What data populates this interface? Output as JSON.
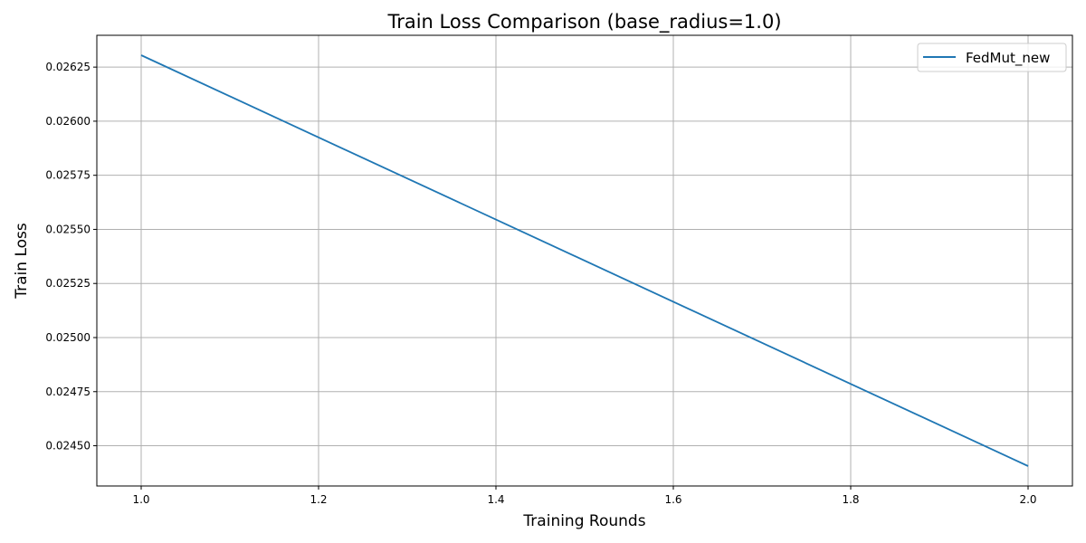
{
  "chart_data": {
    "type": "line",
    "title": "Train Loss Comparison (base_radius=1.0)",
    "xlabel": "Training Rounds",
    "ylabel": "Train Loss",
    "xlim": [
      0.95,
      2.05
    ],
    "ylim": [
      0.024314,
      0.026397
    ],
    "xticks": [
      1.0,
      1.2,
      1.4,
      1.6,
      1.8,
      2.0
    ],
    "xtick_labels": [
      "1.0",
      "1.2",
      "1.4",
      "1.6",
      "1.8",
      "2.0"
    ],
    "yticks": [
      0.0245,
      0.02475,
      0.025,
      0.02525,
      0.0255,
      0.02575,
      0.026,
      0.02625
    ],
    "ytick_labels": [
      "0.02450",
      "0.02475",
      "0.02500",
      "0.02525",
      "0.02550",
      "0.02575",
      "0.02600",
      "0.02625"
    ],
    "grid": true,
    "legend_position": "top-right",
    "series": [
      {
        "name": "FedMut_new",
        "color": "#1f77b4",
        "x": [
          1.0,
          2.0
        ],
        "y": [
          0.026305,
          0.024406
        ]
      }
    ]
  }
}
